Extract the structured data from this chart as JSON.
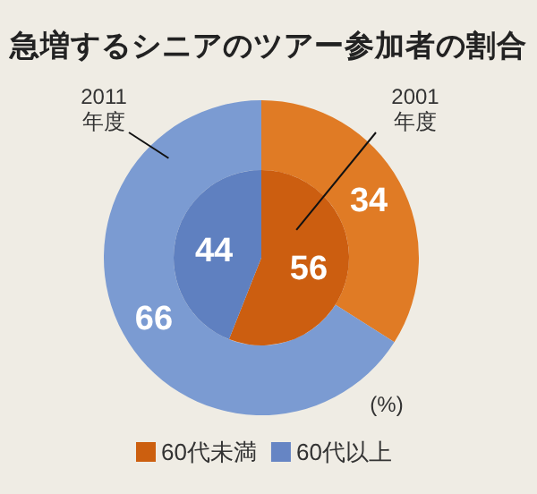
{
  "chart_data": {
    "type": "donut",
    "title": "急増するシニアのツアー参加者の割合",
    "categories": [
      "60代未満",
      "60代以上"
    ],
    "series": [
      {
        "name": "2011 年度",
        "type": "donut",
        "colors": [
          "#e07b25",
          "#7b9bd2"
        ],
        "values": [
          34,
          66
        ]
      },
      {
        "name": "2001 年度",
        "type": "pie",
        "colors": [
          "#cc5e10",
          "#5f80c0"
        ],
        "values": [
          56,
          44
        ]
      }
    ],
    "colors": [
      "#cc5f0f",
      "#6685c4"
    ],
    "data_labels": true,
    "legend": "bottom",
    "annotations": [
      "(%)"
    ]
  }
}
